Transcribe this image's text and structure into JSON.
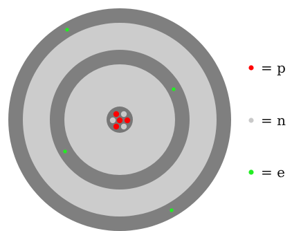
{
  "diagram": {
    "colors": {
      "shell": "#7f7f7f",
      "space": "#cccccc",
      "nucleus": "#777777",
      "proton": "#ff0000",
      "neutron": "#c9c9c9",
      "electron": "#22ee22",
      "text": "#111111"
    },
    "nucleus": {
      "protons": 5,
      "neutrons": 4
    },
    "electrons": {
      "total": 4,
      "inner_shell": 2,
      "outer_shell": 2
    }
  },
  "legend": {
    "items": [
      {
        "name": "proton",
        "label": "= p",
        "color": "#ff0000"
      },
      {
        "name": "neutron",
        "label": "= n",
        "color": "#c9c9c9"
      },
      {
        "name": "electron",
        "label": "= e",
        "color": "#22ee22"
      }
    ]
  }
}
